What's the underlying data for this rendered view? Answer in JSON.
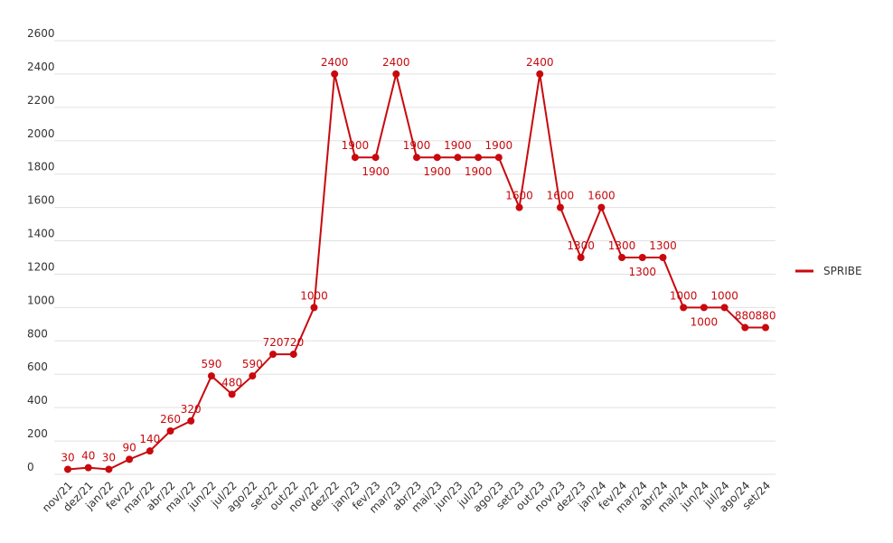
{
  "chart_data": {
    "type": "line",
    "categories": [
      "nov/21",
      "dez/21",
      "jan/22",
      "fev/22",
      "mar/22",
      "abr/22",
      "mai/22",
      "jun/22",
      "jul/22",
      "ago/22",
      "set/22",
      "out/22",
      "nov/22",
      "dez/22",
      "jan/23",
      "fev/23",
      "mar/23",
      "abr/23",
      "mai/23",
      "jun/23",
      "jul/23",
      "ago/23",
      "set/23",
      "out/23",
      "nov/23",
      "dez/23",
      "jan/24",
      "fev/24",
      "mar/24",
      "abr/24",
      "mai/24",
      "jun/24",
      "jul/24",
      "ago/24",
      "set/24"
    ],
    "series": [
      {
        "name": "SPRIBE",
        "color": "#c8090e",
        "values": [
          30,
          40,
          30,
          90,
          140,
          260,
          320,
          590,
          480,
          590,
          720,
          720,
          1000,
          2400,
          1900,
          1900,
          2400,
          1900,
          1900,
          1900,
          1900,
          1900,
          1600,
          2400,
          1600,
          1300,
          1600,
          1300,
          1300,
          1300,
          1000,
          1000,
          1000,
          880,
          880
        ]
      }
    ],
    "ylim": [
      0,
      2600
    ],
    "yticks": [
      0,
      200,
      400,
      600,
      800,
      1000,
      1200,
      1400,
      1600,
      1800,
      2000,
      2200,
      2400,
      2600
    ],
    "grid": true,
    "legend": "right"
  }
}
